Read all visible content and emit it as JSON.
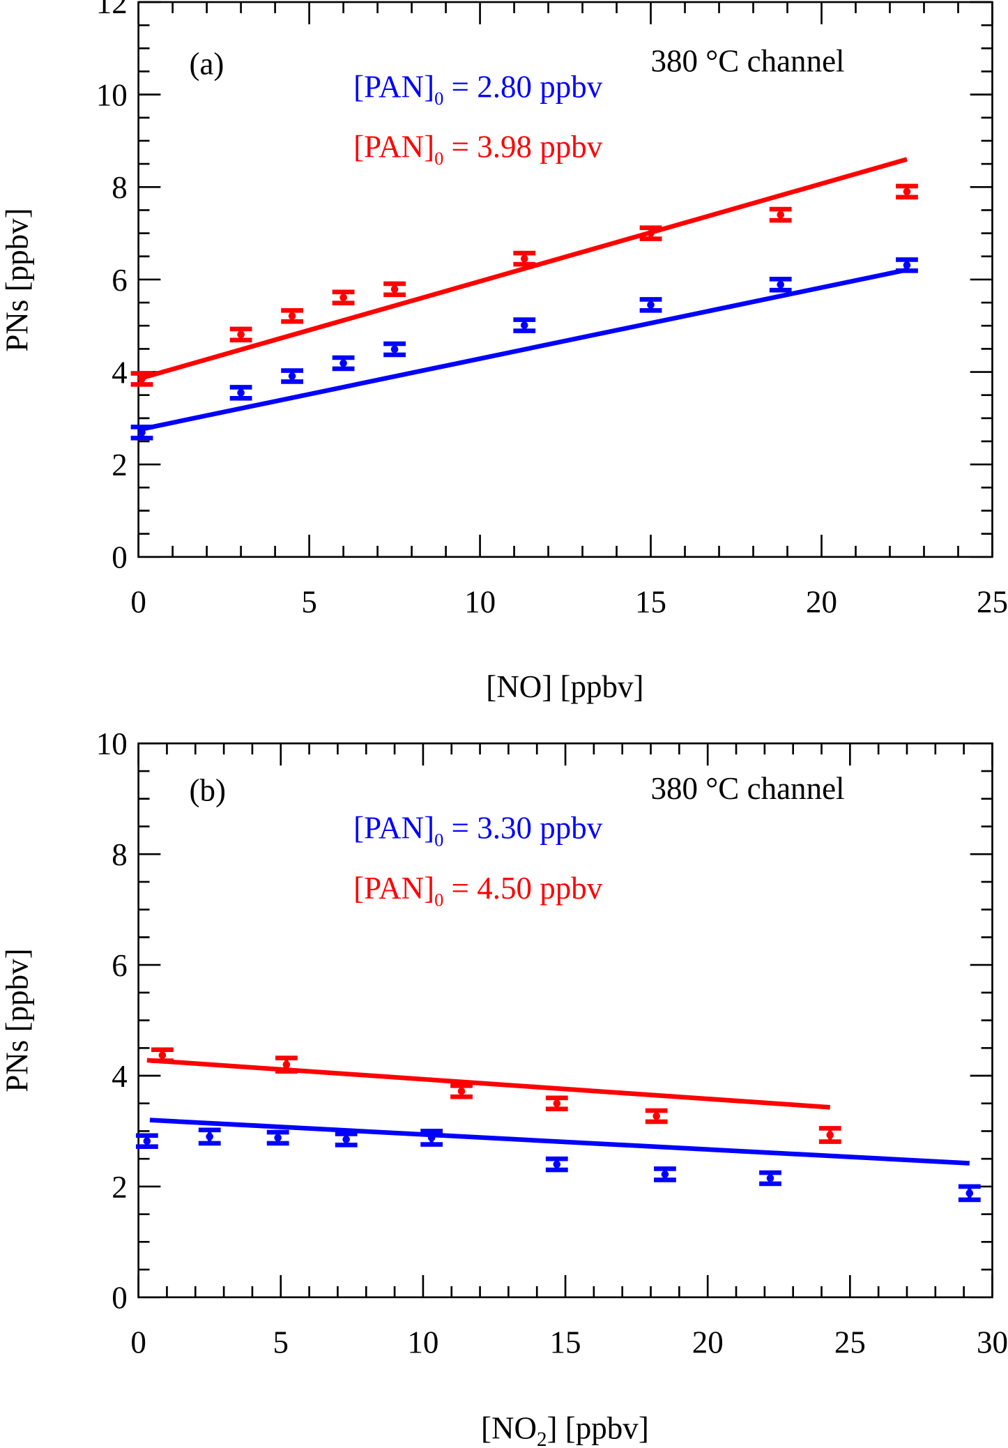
{
  "chart_data": [
    {
      "type": "scatter",
      "panel_label": "(a)",
      "annotation": "380 °C  channel",
      "xlabel": "[NO] [ppbv]",
      "ylabel": "PNs [ppbv]",
      "xlim": [
        0,
        25
      ],
      "ylim": [
        0,
        12
      ],
      "xticks": [
        0,
        5,
        10,
        15,
        20,
        25
      ],
      "yticks": [
        0,
        2,
        4,
        6,
        8,
        10,
        12
      ],
      "grid": false,
      "legend": "top-center",
      "series": [
        {
          "name_prefix": "[PAN]",
          "name_sub": "0",
          "name_suffix": " = 2.80 ppbv",
          "color": "#0000ff",
          "x": [
            0.1,
            3.0,
            4.5,
            6.0,
            7.5,
            11.3,
            15.0,
            18.8,
            22.5
          ],
          "y": [
            2.69,
            3.55,
            3.91,
            4.19,
            4.49,
            5.01,
            5.45,
            5.89,
            6.31
          ],
          "yerr": [
            0.1,
            0.1,
            0.1,
            0.1,
            0.1,
            0.1,
            0.08,
            0.1,
            0.1
          ],
          "fit": {
            "x": [
              0,
              22.5
            ],
            "y": [
              2.75,
              6.21
            ]
          }
        },
        {
          "name_prefix": "[PAN]",
          "name_sub": "0",
          "name_suffix": " = 3.98 ppbv",
          "color": "#ff0000",
          "x": [
            0.1,
            3.0,
            4.5,
            6.0,
            7.5,
            11.3,
            15.0,
            18.8,
            22.5
          ],
          "y": [
            3.85,
            4.81,
            5.21,
            5.61,
            5.79,
            6.45,
            7.0,
            7.4,
            7.9
          ],
          "yerr": [
            0.1,
            0.1,
            0.1,
            0.1,
            0.12,
            0.1,
            0.1,
            0.08,
            0.1
          ],
          "fit": {
            "x": [
              0,
              22.5
            ],
            "y": [
              3.85,
              8.6
            ]
          }
        }
      ]
    },
    {
      "type": "scatter",
      "panel_label": "(b)",
      "annotation": "380 °C  channel",
      "xlabel_prefix": "[NO",
      "xlabel_sub": "2",
      "xlabel_suffix": "] [ppbv]",
      "ylabel": "PNs [ppbv]",
      "xlim": [
        0,
        30
      ],
      "ylim": [
        0,
        10
      ],
      "xticks": [
        0,
        5,
        10,
        15,
        20,
        25,
        30
      ],
      "yticks": [
        0,
        2,
        4,
        6,
        8,
        10
      ],
      "grid": false,
      "legend": "top-center",
      "series": [
        {
          "name_prefix": "[PAN]",
          "name_sub": "0",
          "name_suffix": " = 3.30 ppbv",
          "color": "#0000ff",
          "x": [
            0.3,
            2.5,
            4.9,
            7.3,
            10.3,
            14.7,
            18.5,
            22.2,
            29.2
          ],
          "y": [
            2.82,
            2.9,
            2.88,
            2.85,
            2.88,
            2.4,
            2.22,
            2.15,
            1.88
          ],
          "yerr": [
            0.1,
            0.12,
            0.1,
            0.08,
            0.12,
            0.08,
            0.1,
            0.08,
            0.12
          ],
          "fit": {
            "x": [
              0.4,
              29.2
            ],
            "y": [
              3.2,
              2.42
            ]
          }
        },
        {
          "name_prefix": "[PAN]",
          "name_sub": "0",
          "name_suffix": " = 4.50 ppbv",
          "color": "#ff0000",
          "x": [
            0.84,
            5.2,
            11.35,
            14.7,
            18.2,
            24.3
          ],
          "y": [
            4.37,
            4.2,
            3.72,
            3.5,
            3.27,
            2.93
          ],
          "yerr": [
            0.1,
            0.12,
            0.1,
            0.1,
            0.1,
            0.12
          ],
          "fit": {
            "x": [
              0.3,
              24.3
            ],
            "y": [
              4.28,
              3.43
            ]
          }
        }
      ]
    }
  ]
}
